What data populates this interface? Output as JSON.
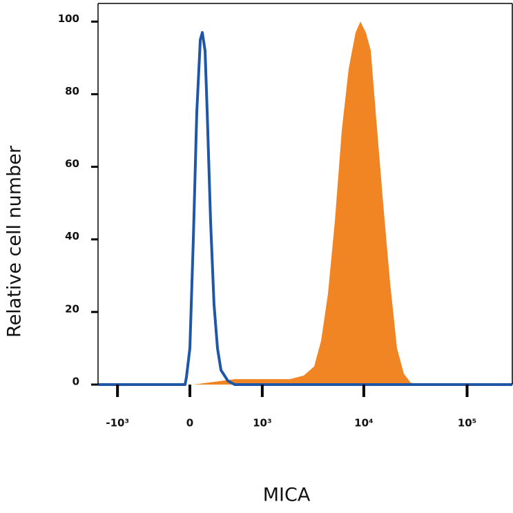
{
  "chart_data": {
    "type": "histogram-overlay",
    "x_label": "MICA",
    "y_label": "Relative cell number",
    "xscale": "biexponential",
    "xlim": [
      -1580,
      274000
    ],
    "ylim": [
      0,
      105
    ],
    "xticks": [
      {
        "value": -1000,
        "label": "-10³"
      },
      0,
      {
        "value": 1000,
        "label": "10³"
      },
      {
        "value": 10000,
        "label": "10⁴"
      },
      {
        "value": 100000,
        "label": "10⁵"
      }
    ],
    "yticks": [
      0,
      20,
      40,
      60,
      80,
      100
    ],
    "series": [
      {
        "color": "#f28523",
        "style": "filled",
        "x": [
          -1580,
          32,
          311,
          488,
          1909,
          2611,
          3295,
          3847,
          4490,
          5242,
          6117,
          7138,
          8321,
          9271,
          10483,
          11682,
          13214,
          15400,
          17970,
          20958,
          24440,
          28500,
          35900,
          274000
        ],
        "values": [
          0,
          0,
          1,
          1.5,
          1.5,
          2.5,
          5,
          12,
          25,
          45,
          70,
          87,
          97,
          100,
          97,
          92,
          73,
          50,
          28,
          10,
          3,
          0.5,
          0,
          0
        ]
      },
      {
        "color": "#1f56a8",
        "style": "line",
        "x": [
          -1580,
          -45,
          -32,
          0,
          32,
          64,
          97,
          116,
          143,
          164,
          198,
          234,
          272,
          311,
          395,
          488,
          274000
        ],
        "values": [
          0,
          0,
          2,
          10,
          40,
          75,
          95,
          97,
          92,
          75,
          45,
          22,
          10,
          4,
          1,
          0,
          0
        ]
      }
    ]
  }
}
